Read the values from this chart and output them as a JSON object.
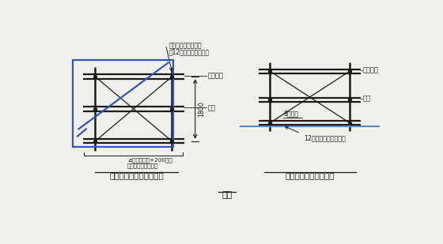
{
  "bg_color": "#f0f0eb",
  "line_color": "#1a1a1a",
  "blue_rect": "#3355bb",
  "blue_line": "#4466cc",
  "light_blue": "#5588cc",
  "title1": "窗洞口（室内临边）防护",
  "title2": "阳台或落地窗洞口防护",
  "caption": "图四",
  "label_lupole_1": "立杆通过穿墙螺杆洞",
  "label_lupole_2": "用12号铁丝固定于墙体",
  "label_safe_net1": "安全绿网",
  "label_pipe1": "钢管",
  "label_dim": "1800",
  "label_width_1": "≥窗洞口尺寸+200，根",
  "label_width_2": "据穿墙螺栓位置调节",
  "label_safe_net2": "安全绿网",
  "label_pipe2": "钢管",
  "label_steel": "8厚钢板",
  "label_bolt_1": "12号膨胀螺丝楼板固定",
  "font_size_small": 6.0,
  "font_size_title": 7.5,
  "font_size_caption": 8.0
}
